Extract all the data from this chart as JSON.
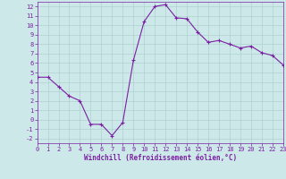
{
  "x": [
    0,
    1,
    2,
    3,
    4,
    5,
    6,
    7,
    8,
    9,
    10,
    11,
    12,
    13,
    14,
    15,
    16,
    17,
    18,
    19,
    20,
    21,
    22,
    23
  ],
  "y": [
    4.5,
    4.5,
    3.5,
    2.5,
    2.0,
    -0.5,
    -0.5,
    -1.7,
    -0.3,
    6.3,
    10.4,
    12.0,
    12.2,
    10.8,
    10.7,
    9.3,
    8.2,
    8.4,
    8.0,
    7.6,
    7.8,
    7.1,
    6.8,
    5.8
  ],
  "line_color": "#7b1fa2",
  "marker": "+",
  "marker_color": "#7b1fa2",
  "bg_color": "#cce8e8",
  "grid_color": "#b0d0d0",
  "xlabel": "Windchill (Refroidissement éolien,°C)",
  "xlabel_color": "#7b1fa2",
  "tick_color": "#7b1fa2",
  "ylim": [
    -2.5,
    12.5
  ],
  "xlim": [
    0,
    23
  ],
  "yticks": [
    -2,
    -1,
    0,
    1,
    2,
    3,
    4,
    5,
    6,
    7,
    8,
    9,
    10,
    11,
    12
  ],
  "xticks": [
    0,
    1,
    2,
    3,
    4,
    5,
    6,
    7,
    8,
    9,
    10,
    11,
    12,
    13,
    14,
    15,
    16,
    17,
    18,
    19,
    20,
    21,
    22,
    23
  ]
}
